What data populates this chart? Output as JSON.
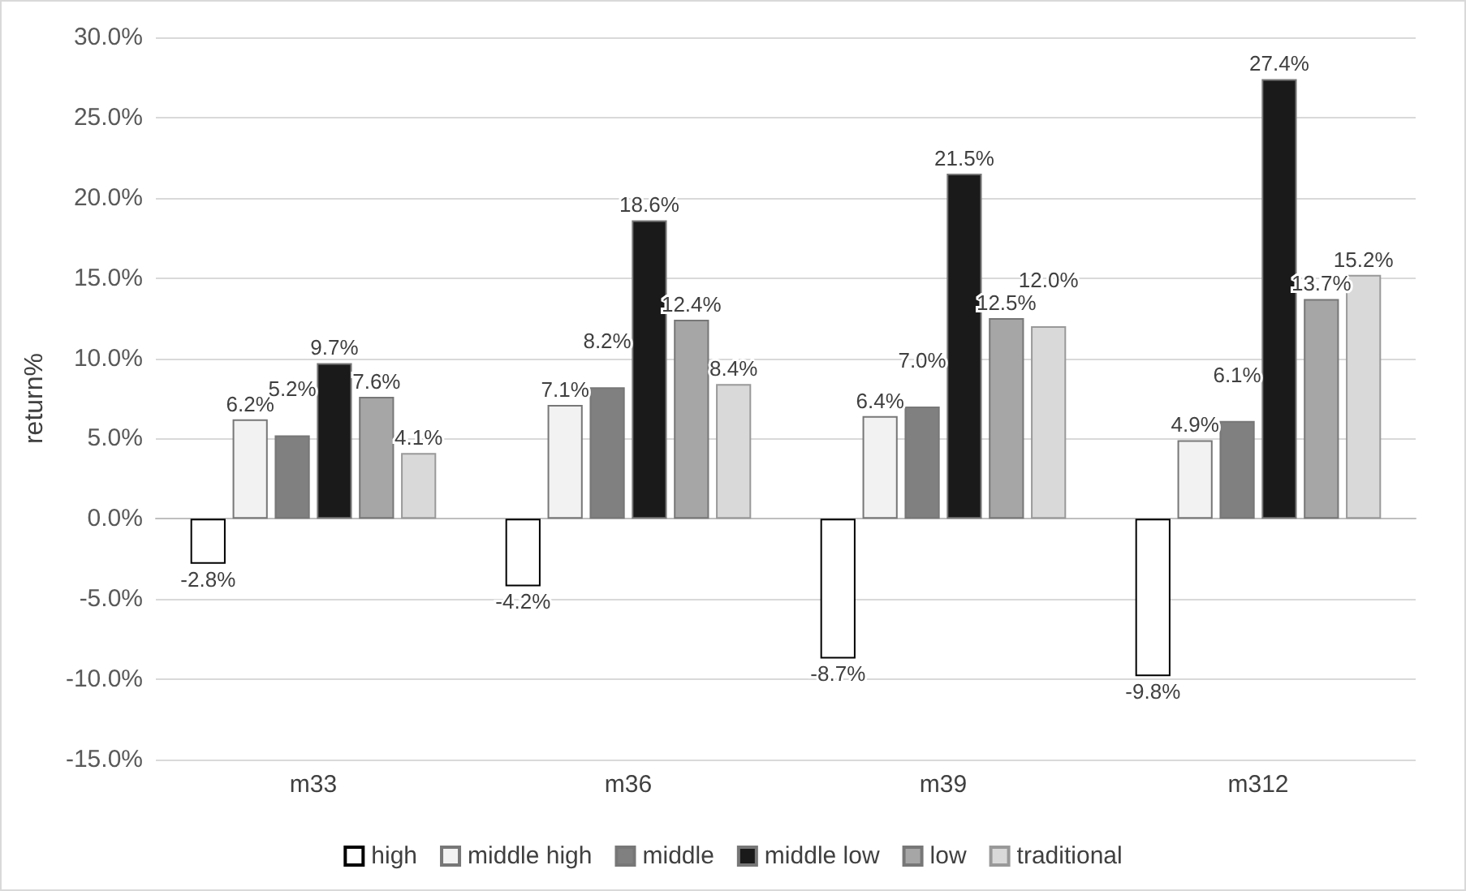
{
  "chart_data": {
    "type": "bar",
    "ylabel": "return%",
    "categories": [
      "m33",
      "m36",
      "m39",
      "m312"
    ],
    "series": [
      {
        "name": "high",
        "color": "#ffffff",
        "values": [
          -2.8,
          -4.2,
          -8.7,
          -9.8
        ],
        "value_labels": [
          "-2.8%",
          "-4.2%",
          "-8.7%",
          "-9.8%"
        ]
      },
      {
        "name": "middle high",
        "color": "#f2f2f2",
        "values": [
          6.2,
          7.1,
          6.4,
          4.9
        ],
        "value_labels": [
          "6.2%",
          "7.1%",
          "6.4%",
          "4.9%"
        ]
      },
      {
        "name": "middle",
        "color": "#808080",
        "values": [
          5.2,
          8.2,
          7.0,
          6.1
        ],
        "value_labels": [
          "5.2%",
          "8.2%",
          "7.0%",
          "6.1%"
        ]
      },
      {
        "name": "middle low",
        "color": "#1a1a1a",
        "values": [
          9.7,
          18.6,
          21.5,
          27.4
        ],
        "value_labels": [
          "9.7%",
          "18.6%",
          "21.5%",
          "27.4%"
        ]
      },
      {
        "name": "low",
        "color": "#a6a6a6",
        "values": [
          7.6,
          12.4,
          12.5,
          13.7
        ],
        "value_labels": [
          "7.6%",
          "12.4%",
          "12.5%",
          "13.7%"
        ]
      },
      {
        "name": "traditional",
        "color": "#d9d9d9",
        "values": [
          4.1,
          8.4,
          12.0,
          15.2
        ],
        "value_labels": [
          "4.1%",
          "8.4%",
          "12.0%",
          "15.2%"
        ]
      }
    ],
    "ylim": [
      -15,
      30
    ],
    "yticks": [
      {
        "value": -15,
        "label": "-15.0%"
      },
      {
        "value": -10,
        "label": "-10.0%"
      },
      {
        "value": -5,
        "label": "-5.0%"
      },
      {
        "value": 0,
        "label": "0.0%"
      },
      {
        "value": 5,
        "label": "5.0%"
      },
      {
        "value": 10,
        "label": "10.0%"
      },
      {
        "value": 15,
        "label": "15.0%"
      },
      {
        "value": 20,
        "label": "20.0%"
      },
      {
        "value": 25,
        "label": "25.0%"
      },
      {
        "value": 30,
        "label": "30.0%"
      }
    ],
    "grid": "y",
    "legend": "bottom"
  }
}
